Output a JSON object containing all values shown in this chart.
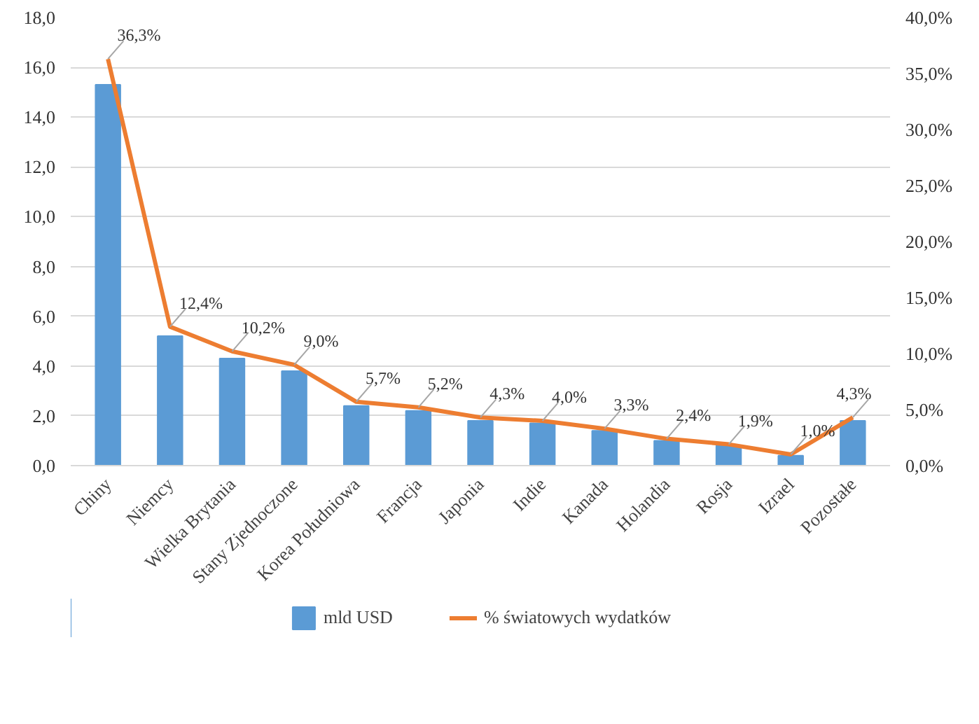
{
  "chart_data": {
    "type": "bar",
    "categories": [
      "Chiny",
      "Niemcy",
      "Wielka Brytania",
      "Stany Zjednoczone",
      "Korea Południowa",
      "Francja",
      "Japonia",
      "Indie",
      "Kanada",
      "Holandia",
      "Rosja",
      "Izrael",
      "Pozostałe"
    ],
    "series": [
      {
        "name": "mld USD",
        "type": "bar",
        "color": "#5b9bd5",
        "values": [
          15.3,
          5.2,
          4.3,
          3.8,
          2.4,
          2.2,
          1.8,
          1.7,
          1.4,
          1.0,
          0.8,
          0.4,
          1.8
        ]
      },
      {
        "name": "% światowych wydatków",
        "type": "line",
        "axis": "y2",
        "color": "#ed7d31",
        "values": [
          36.3,
          12.4,
          10.2,
          9.0,
          5.7,
          5.2,
          4.3,
          4.0,
          3.3,
          2.4,
          1.9,
          1.0,
          4.3
        ],
        "value_labels": [
          "36,3%",
          "12,4%",
          "10,2%",
          "9,0%",
          "5,7%",
          "5,2%",
          "4,3%",
          "4,0%",
          "3,3%",
          "2,4%",
          "1,9%",
          "1,0%",
          "4,3%"
        ]
      }
    ],
    "ylim": [
      0,
      18
    ],
    "yticks": [
      {
        "value": 0,
        "label": "0,0"
      },
      {
        "value": 2,
        "label": "2,0"
      },
      {
        "value": 4,
        "label": "4,0"
      },
      {
        "value": 6,
        "label": "6,0"
      },
      {
        "value": 8,
        "label": "8,0"
      },
      {
        "value": 10,
        "label": "10,0"
      },
      {
        "value": 12,
        "label": "12,0"
      },
      {
        "value": 14,
        "label": "14,0"
      },
      {
        "value": 16,
        "label": "16,0"
      },
      {
        "value": 18,
        "label": "18,0"
      }
    ],
    "y2lim": [
      0,
      40
    ],
    "y2ticks": [
      {
        "value": 0,
        "label": "0,0%"
      },
      {
        "value": 5,
        "label": "5,0%"
      },
      {
        "value": 10,
        "label": "10,0%"
      },
      {
        "value": 15,
        "label": "15,0%"
      },
      {
        "value": 20,
        "label": "20,0%"
      },
      {
        "value": 25,
        "label": "25,0%"
      },
      {
        "value": 30,
        "label": "30,0%"
      },
      {
        "value": 35,
        "label": "35,0%"
      },
      {
        "value": 40,
        "label": "40,0%"
      }
    ],
    "grid": "y",
    "legend": "bottom"
  }
}
